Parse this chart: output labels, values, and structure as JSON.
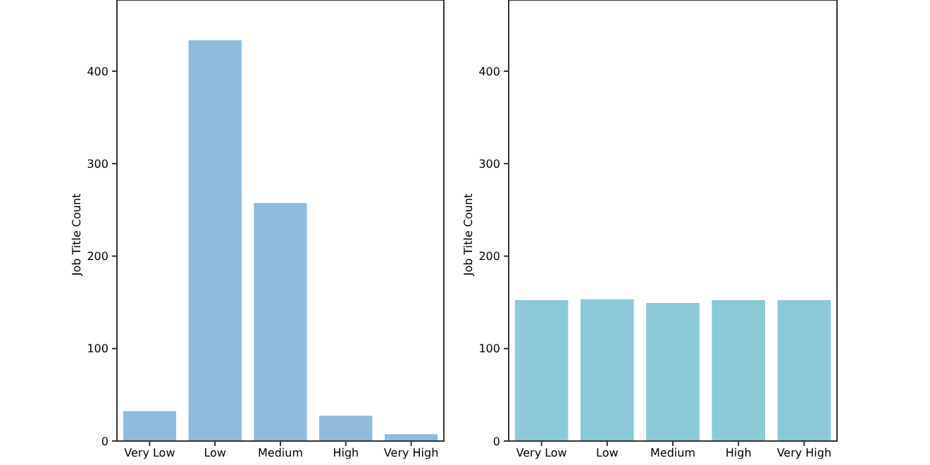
{
  "chart_data": [
    {
      "type": "bar",
      "categories": [
        "Very Low",
        "Low",
        "Medium",
        "High",
        "Very High"
      ],
      "values": [
        32,
        433,
        257,
        27,
        7
      ],
      "color": "#8fbadb",
      "ylabel": "Job Title Count",
      "ylim": [
        0,
        477
      ],
      "yticks": [
        0,
        100,
        200,
        300,
        400
      ],
      "grid": false
    },
    {
      "type": "bar",
      "categories": [
        "Very Low",
        "Low",
        "Medium",
        "High",
        "Very High"
      ],
      "values": [
        152,
        153,
        149,
        152,
        152
      ],
      "color": "#8cc9d6",
      "ylabel": "Job Title Count",
      "ylim": [
        0,
        477
      ],
      "yticks": [
        0,
        100,
        200,
        300,
        400
      ],
      "grid": false
    }
  ]
}
